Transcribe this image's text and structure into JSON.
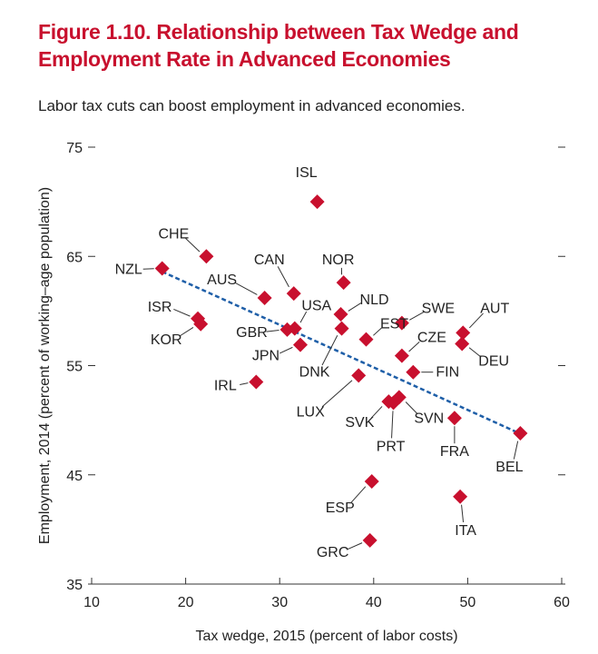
{
  "header": {
    "title_line1": "Figure 1.10. Relationship between Tax Wedge and",
    "title_line2": "Employment Rate in Advanced Economies",
    "subtitle": "Labor tax cuts can boost employment in advanced economies."
  },
  "colors": {
    "title": "#c8102e",
    "marker": "#c8102e",
    "trend": "#1f5fa8",
    "axis": "#333333"
  },
  "chart_data": {
    "type": "scatter",
    "xlabel": "Tax wedge, 2015 (percent of labor costs)",
    "ylabel": "Employment, 2014 (percent of working–age population)",
    "xlim": [
      10,
      60
    ],
    "ylim": [
      35,
      75
    ],
    "xticks": [
      "10",
      "20",
      "30",
      "40",
      "50",
      "60"
    ],
    "yticks": [
      "35",
      "45",
      "55",
      "65",
      "75"
    ],
    "grid": false,
    "trendline": {
      "style": "dashed",
      "x": [
        17.5,
        55.5
      ],
      "y": [
        63.6,
        48.8
      ]
    },
    "points": [
      {
        "label": "ISL",
        "x": 34.0,
        "y": 70.0
      },
      {
        "label": "CHE",
        "x": 22.2,
        "y": 65.0
      },
      {
        "label": "NZL",
        "x": 17.5,
        "y": 63.9
      },
      {
        "label": "NOR",
        "x": 36.8,
        "y": 62.6
      },
      {
        "label": "CAN",
        "x": 31.5,
        "y": 61.6
      },
      {
        "label": "AUS",
        "x": 28.4,
        "y": 61.2
      },
      {
        "label": "USA",
        "x": 31.6,
        "y": 58.4
      },
      {
        "label": "GBR",
        "x": 30.8,
        "y": 58.3
      },
      {
        "label": "JPN",
        "x": 32.2,
        "y": 56.9
      },
      {
        "label": "NLD",
        "x": 36.5,
        "y": 59.7
      },
      {
        "label": "DNK",
        "x": 36.6,
        "y": 58.4
      },
      {
        "label": "EST",
        "x": 39.2,
        "y": 57.4
      },
      {
        "label": "SWE",
        "x": 43.0,
        "y": 58.9
      },
      {
        "label": "CZE",
        "x": 43.0,
        "y": 55.9
      },
      {
        "label": "AUT",
        "x": 49.5,
        "y": 58.0
      },
      {
        "label": "DEU",
        "x": 49.4,
        "y": 57.0
      },
      {
        "label": "FIN",
        "x": 44.2,
        "y": 54.4
      },
      {
        "label": "ISR",
        "x": 21.3,
        "y": 59.3
      },
      {
        "label": "KOR",
        "x": 21.6,
        "y": 58.8
      },
      {
        "label": "LUX",
        "x": 38.4,
        "y": 54.1
      },
      {
        "label": "IRL",
        "x": 27.5,
        "y": 53.5
      },
      {
        "label": "SVK",
        "x": 41.6,
        "y": 51.7
      },
      {
        "label": "SVN",
        "x": 42.7,
        "y": 52.1
      },
      {
        "label": "PRT",
        "x": 42.1,
        "y": 51.6
      },
      {
        "label": "FRA",
        "x": 48.6,
        "y": 50.2
      },
      {
        "label": "BEL",
        "x": 55.6,
        "y": 48.8
      },
      {
        "label": "ESP",
        "x": 39.8,
        "y": 44.4
      },
      {
        "label": "ITA",
        "x": 49.2,
        "y": 43.0
      },
      {
        "label": "GRC",
        "x": 39.6,
        "y": 39.0
      }
    ]
  }
}
